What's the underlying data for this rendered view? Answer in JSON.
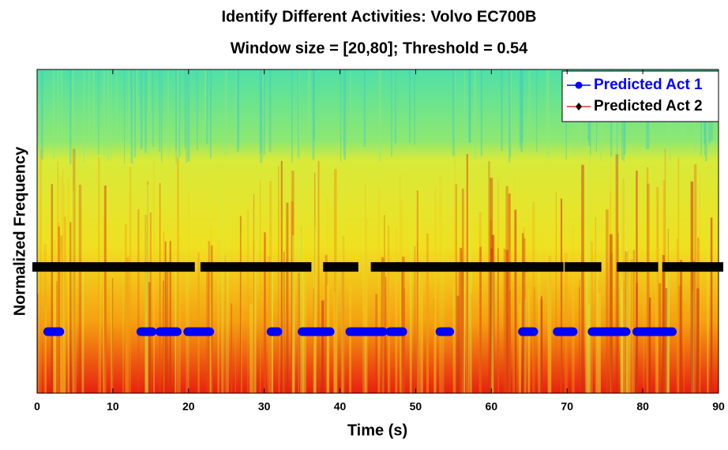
{
  "chart_data": {
    "type": "intervals",
    "title": "Identify Different Activities: Volvo EC700B",
    "subtitle": "Window size = [20,80]; Threshold = 0.54",
    "x_label": "Time (s)",
    "y_label": "Normalized Frequency",
    "xlim": [
      0,
      90
    ],
    "xticks": [
      0,
      10,
      20,
      30,
      40,
      50,
      60,
      70,
      80,
      90
    ],
    "ylim": [
      0,
      1
    ],
    "legend": "top-right",
    "series": [
      {
        "name": "Predicted Act 1",
        "color": "#0000ff",
        "y": 0.19,
        "intervals": [
          [
            1.4,
            3.0
          ],
          [
            13.7,
            15.2
          ],
          [
            16.2,
            18.5
          ],
          [
            19.9,
            22.8
          ],
          [
            30.9,
            31.8
          ],
          [
            35.0,
            38.7
          ],
          [
            41.3,
            45.7
          ],
          [
            46.6,
            48.3
          ],
          [
            53.2,
            54.5
          ],
          [
            64.1,
            65.6
          ],
          [
            68.7,
            70.8
          ],
          [
            73.3,
            77.8
          ],
          [
            79.2,
            83.9
          ]
        ]
      },
      {
        "name": "Predicted Act 2",
        "color": "#000000",
        "y": 0.39,
        "intervals": [
          [
            0,
            2.1
          ],
          [
            2.6,
            14.2
          ],
          [
            14.8,
            16.9
          ],
          [
            17.8,
            20.2
          ],
          [
            22.2,
            35.6
          ],
          [
            38.4,
            41.8
          ],
          [
            44.7,
            47.2
          ],
          [
            48.0,
            64.4
          ],
          [
            64.9,
            68.9
          ],
          [
            70.3,
            73.9
          ],
          [
            77.2,
            79.6
          ],
          [
            80.1,
            81.4
          ],
          [
            83.2,
            90.0
          ]
        ]
      }
    ]
  }
}
